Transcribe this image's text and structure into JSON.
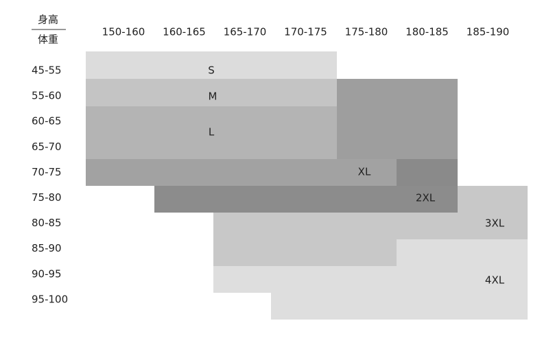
{
  "header": {
    "top": "身高",
    "bottom": "体重"
  },
  "columns": [
    "150-160",
    "160-165",
    "165-170",
    "170-175",
    "175-180",
    "180-185",
    "185-190"
  ],
  "rows": [
    "45-55",
    "55-60",
    "60-65",
    "65-70",
    "70-75",
    "75-80",
    "80-85",
    "85-90",
    "90-95",
    "95-100"
  ],
  "sizes": [
    "S",
    "M",
    "L",
    "XL",
    "2XL",
    "3XL",
    "4XL"
  ]
}
